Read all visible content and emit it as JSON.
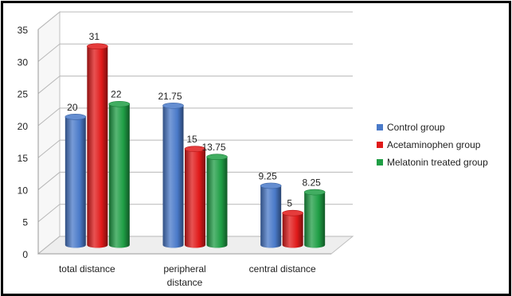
{
  "chart_data": {
    "type": "bar",
    "title": "",
    "xlabel": "",
    "ylabel": "",
    "ylim": [
      0,
      35
    ],
    "yticks": [
      0,
      5,
      10,
      15,
      20,
      25,
      30,
      35
    ],
    "categories": [
      "total distance",
      [
        "peripheral",
        "distance"
      ],
      "central distance"
    ],
    "series": [
      {
        "name": "Control group",
        "color": "#4a7ac9",
        "values": [
          20,
          21.75,
          9.25
        ],
        "labels": [
          "20",
          "21.75",
          "9.25"
        ]
      },
      {
        "name": "Acetaminophen group",
        "color": "#e01a1a",
        "values": [
          31,
          15,
          5
        ],
        "labels": [
          "31",
          "15",
          "5"
        ]
      },
      {
        "name": "Melatonin treated group",
        "color": "#1f9e45",
        "values": [
          22,
          13.75,
          8.25
        ],
        "labels": [
          "22",
          "13.75",
          "8.25"
        ]
      }
    ],
    "grid": true,
    "legend": "right",
    "style": "3d-cylinder"
  }
}
